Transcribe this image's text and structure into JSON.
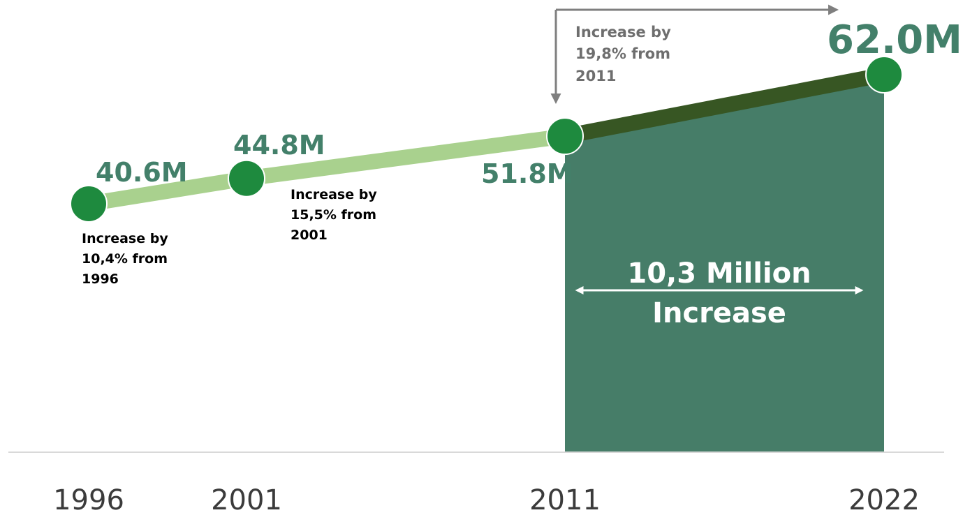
{
  "chart_data": {
    "type": "line",
    "categories": [
      "1996",
      "2001",
      "2011",
      "2022"
    ],
    "values": [
      40.6,
      44.8,
      51.8,
      62.0
    ],
    "value_labels": [
      "40.6M",
      "44.8M",
      "51.8M",
      "62.0M"
    ],
    "unit": "M",
    "annotations": [
      {
        "lines": [
          "Increase by",
          "10,4% from",
          "1996"
        ]
      },
      {
        "lines": [
          "Increase by",
          "15,5% from",
          "2001"
        ]
      },
      {
        "lines": [
          "Increase by",
          "19,8% from",
          "2011"
        ]
      }
    ],
    "highlight": {
      "from": "2011",
      "to": "2022",
      "lines": [
        "10,3 Million",
        "Increase"
      ]
    },
    "colors": {
      "line_light": "#a9d18e",
      "line_dark": "#375623",
      "marker": "#1e8a3e",
      "value_label": "#43806a",
      "highlight_fill": "#467d68",
      "axis": "#d9d9d9",
      "arrow": "#7f7f7f"
    },
    "grid": false,
    "legend": "none"
  }
}
